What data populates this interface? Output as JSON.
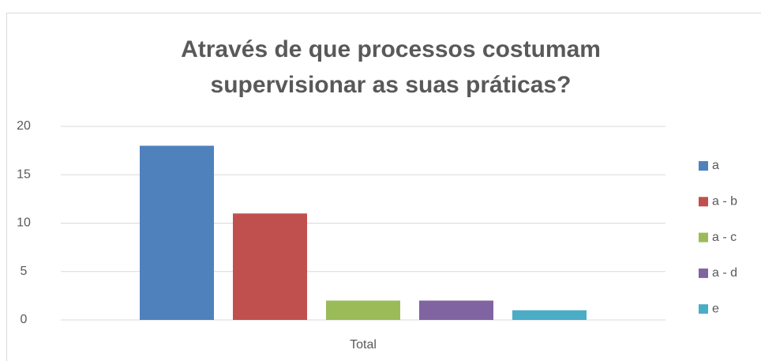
{
  "chart_data": {
    "type": "bar",
    "title": "Através de que processos costumam supervisionar as suas práticas?",
    "categories": [
      "Total"
    ],
    "series": [
      {
        "name": "a",
        "color": "#4f81bd",
        "values": [
          18
        ]
      },
      {
        "name": "a - b",
        "color": "#c0504d",
        "values": [
          11
        ]
      },
      {
        "name": "a - c",
        "color": "#9bbb59",
        "values": [
          2
        ]
      },
      {
        "name": "a - d",
        "color": "#8064a2",
        "values": [
          2
        ]
      },
      {
        "name": "e",
        "color": "#4bacc6",
        "values": [
          1
        ]
      }
    ],
    "ylim": [
      0,
      20
    ],
    "yticks": [
      0,
      5,
      10,
      15,
      20
    ],
    "grid": true,
    "legend": "right"
  }
}
